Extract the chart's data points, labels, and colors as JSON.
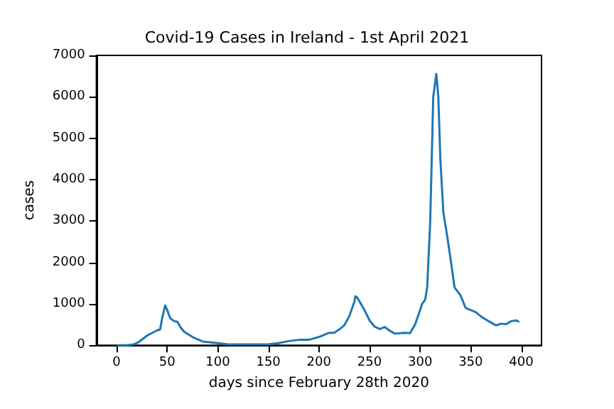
{
  "chart_data": {
    "type": "line",
    "title": "Covid-19 Cases in Ireland - 1st April 2021",
    "xlabel": "days since February 28th 2020",
    "ylabel": "cases",
    "xlim": [
      -20,
      420
    ],
    "xticks": [
      0,
      50,
      100,
      150,
      200,
      250,
      300,
      350,
      400
    ],
    "ylim": [
      0,
      7000
    ],
    "yticks": [
      0,
      1000,
      2000,
      3000,
      4000,
      5000,
      6000,
      7000
    ],
    "grid": false,
    "marker": "none",
    "line_style": "solid",
    "x": [
      0,
      10,
      17,
      22,
      30,
      40,
      43,
      45,
      48,
      50,
      53,
      57,
      60,
      63,
      67,
      75,
      85,
      100,
      110,
      130,
      150,
      160,
      170,
      180,
      190,
      200,
      210,
      215,
      220,
      225,
      230,
      235,
      236,
      238,
      245,
      250,
      255,
      260,
      265,
      270,
      275,
      280,
      285,
      290,
      295,
      300,
      302,
      305,
      307,
      310,
      313,
      316,
      318,
      320,
      323,
      327,
      330,
      334,
      340,
      345,
      350,
      355,
      360,
      365,
      370,
      375,
      380,
      385,
      390,
      395,
      398
    ],
    "series": [
      {
        "color": "#1f77b4",
        "values": [
          0,
          0,
          20,
          80,
          230,
          360,
          380,
          650,
          960,
          850,
          650,
          580,
          570,
          440,
          320,
          200,
          90,
          50,
          20,
          20,
          20,
          50,
          100,
          130,
          130,
          200,
          300,
          300,
          380,
          480,
          700,
          1050,
          1180,
          1150,
          850,
          600,
          450,
          390,
          440,
          350,
          280,
          290,
          300,
          290,
          500,
          850,
          1000,
          1100,
          1400,
          3000,
          6000,
          6550,
          6000,
          4500,
          3200,
          2600,
          2100,
          1400,
          1200,
          900,
          850,
          800,
          700,
          620,
          550,
          480,
          520,
          510,
          580,
          600,
          560
        ]
      }
    ]
  }
}
